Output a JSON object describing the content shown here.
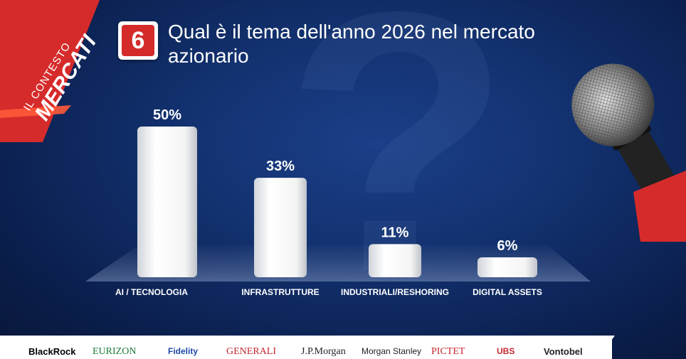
{
  "question": {
    "number": "6",
    "title_line1": "Qual è il tema dell'anno 2026 nel mercato",
    "title_line2": "azionario"
  },
  "ribbon": {
    "small": "IL CONTESTO",
    "big": "MERCATI"
  },
  "chart_data": {
    "type": "bar",
    "categories": [
      "AI / TECNOLOGIA",
      "INFRASTRUTTURE",
      "INDUSTRIALI/RESHORING",
      "DIGITAL ASSETS"
    ],
    "values": [
      50,
      33,
      11,
      6
    ],
    "value_labels": [
      "50%",
      "33%",
      "11%",
      "6%"
    ],
    "title": "Qual è il tema dell'anno 2026 nel mercato azionario",
    "ylim": [
      0,
      50
    ],
    "grid": false,
    "bar_color": "#ffffff",
    "label_color": "#ffffff"
  },
  "sponsors": [
    "BlackRock",
    "EURIZON",
    "Fidelity",
    "GENERALI",
    "J.P.Morgan",
    "Morgan Stanley",
    "PICTET",
    "UBS",
    "Vontobel"
  ],
  "colors": {
    "accent": "#d42a2a",
    "background": "#12306d"
  }
}
